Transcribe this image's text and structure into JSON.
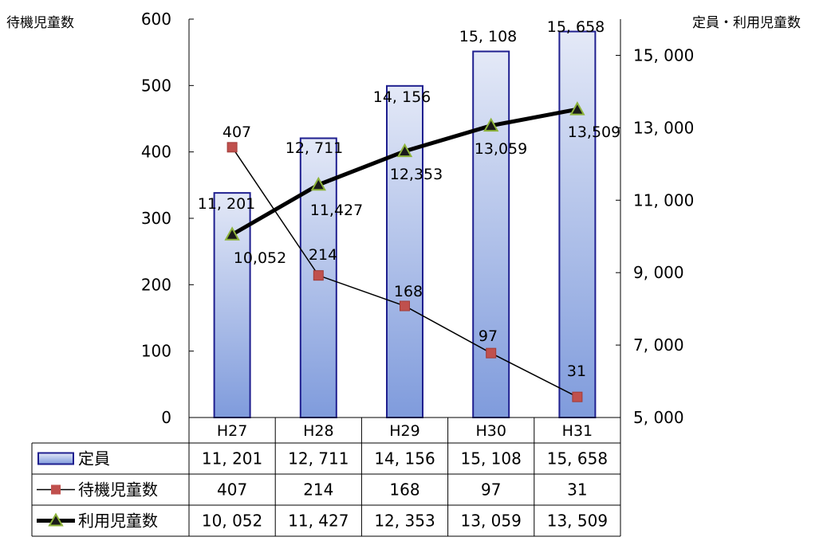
{
  "chart_data": {
    "type": "bar",
    "categories": [
      "H27",
      "H28",
      "H29",
      "H30",
      "H31"
    ],
    "left_axis": {
      "title": "待機児童数",
      "range": [
        0,
        600
      ],
      "ticks": [
        "0",
        "100",
        "200",
        "300",
        "400",
        "500",
        "600"
      ]
    },
    "right_axis": {
      "title": "定員・利用児童数",
      "range": [
        5000,
        16000
      ],
      "ticks": [
        "5, 000",
        "7, 000",
        "9, 000",
        "11, 000",
        "13, 000",
        "15, 000"
      ]
    },
    "series": [
      {
        "name": "定員",
        "kind": "bar",
        "axis": "right",
        "values": [
          11201,
          12711,
          14156,
          15108,
          15658
        ],
        "labels": [
          "11, 201",
          "12, 711",
          "14, 156",
          "15, 108",
          "15, 658"
        ],
        "table_values": [
          "11, 201",
          "12, 711",
          "14, 156",
          "15, 108",
          "15, 658"
        ],
        "color": "#1f1f8f",
        "fill_top": "#e4e9f7",
        "fill_bottom": "#7f9bdc"
      },
      {
        "name": "待機児童数",
        "kind": "line",
        "axis": "left",
        "marker": "square",
        "values": [
          407,
          214,
          168,
          97,
          31
        ],
        "labels": [
          "407",
          "214",
          "168",
          "97",
          "31"
        ],
        "table_values": [
          "407",
          "214",
          "168",
          "97",
          "31"
        ],
        "color": "#000000",
        "marker_color": "#c0504d"
      },
      {
        "name": "利用児童数",
        "kind": "line",
        "axis": "right",
        "marker": "triangle",
        "values": [
          10052,
          11427,
          12353,
          13059,
          13509
        ],
        "labels": [
          "10,052",
          "11,427",
          "12,353",
          "13,059",
          "13,509"
        ],
        "table_values": [
          "10, 052",
          "11, 427",
          "12, 353",
          "13, 059",
          "13, 509"
        ],
        "color": "#000000",
        "marker_color": "#8db33a"
      }
    ],
    "grid": false,
    "legend": "data-table"
  }
}
